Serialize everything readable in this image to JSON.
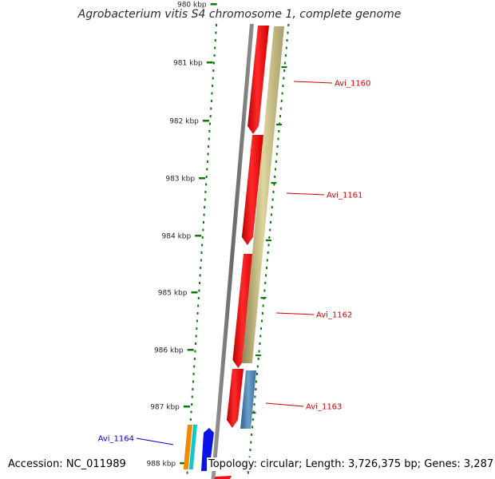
{
  "title": "Agrobacterium vitis S4 chromosome 1, complete genome",
  "footer": {
    "accession": "Accession: NC_011989",
    "topology": "Topology: circular",
    "length": "Length: 3,726,375 bp",
    "genes": "Genes: 3,287"
  },
  "ruler": {
    "unit": "kbp",
    "labels": [
      "980 kbp",
      "981 kbp",
      "982 kbp",
      "983 kbp",
      "984 kbp",
      "985 kbp",
      "986 kbp",
      "987 kbp",
      "988 kbp"
    ]
  },
  "genes": [
    {
      "name": "Avi_1160",
      "label_color": "#cc0000"
    },
    {
      "name": "Avi_1161",
      "label_color": "#cc0000"
    },
    {
      "name": "Avi_1162",
      "label_color": "#cc0000"
    },
    {
      "name": "Avi_1163",
      "label_color": "#cc0000"
    },
    {
      "name": "Avi_1164",
      "label_color": "#0000cc"
    }
  ],
  "colors": {
    "cds": "#ee1111",
    "feature_tan": "#c8bf84",
    "feature_steel": "#4a82b3",
    "feature_orange": "#f08a00",
    "feature_cyan": "#10c8c8",
    "feature_blue": "#0a14e6",
    "backbone": "#707070",
    "ticks": "#0a7a0a"
  }
}
